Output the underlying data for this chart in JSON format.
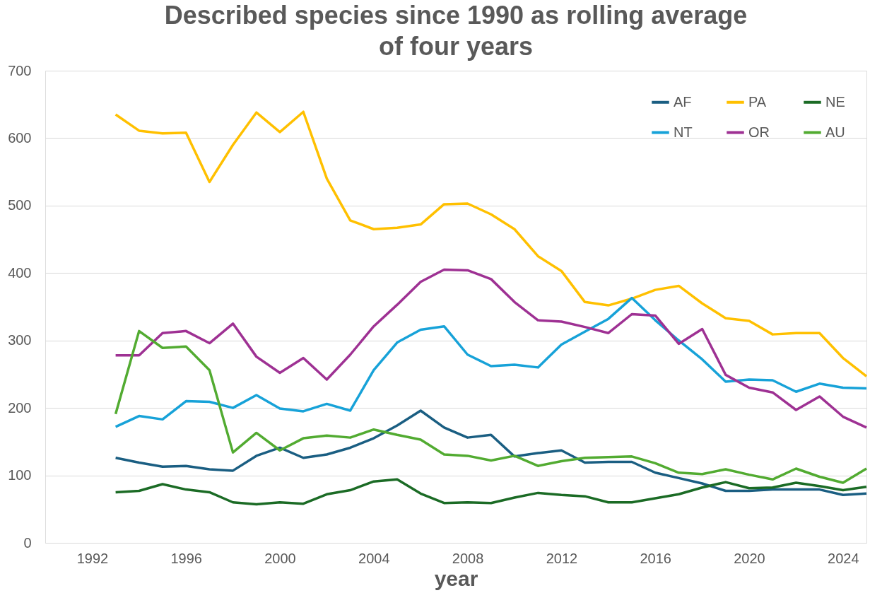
{
  "chart_data": {
    "type": "line",
    "title": "Described species since 1990 as rolling average of four years",
    "xlabel": "year",
    "x": [
      1993,
      1994,
      1995,
      1996,
      1997,
      1998,
      1999,
      2000,
      2001,
      2002,
      2003,
      2004,
      2005,
      2006,
      2007,
      2008,
      2009,
      2010,
      2011,
      2012,
      2013,
      2014,
      2015,
      2016,
      2017,
      2018,
      2019,
      2020,
      2021,
      2022,
      2023,
      2024,
      2025
    ],
    "series": [
      {
        "name": "AF",
        "color": "#1a5e82",
        "values": [
          126,
          119,
          113,
          114,
          109,
          107,
          129,
          141,
          126,
          131,
          141,
          155,
          174,
          196,
          171,
          156,
          160,
          128,
          133,
          137,
          119,
          120,
          120,
          104,
          96,
          88,
          77,
          77,
          79,
          79,
          79,
          71,
          73
        ]
      },
      {
        "name": "PA",
        "color": "#ffc000",
        "values": [
          635,
          611,
          607,
          608,
          535,
          590,
          638,
          609,
          639,
          540,
          478,
          465,
          467,
          472,
          502,
          503,
          487,
          465,
          425,
          403,
          357,
          352,
          362,
          375,
          381,
          355,
          333,
          329,
          309,
          311,
          311,
          274,
          247
        ]
      },
      {
        "name": "NE",
        "color": "#1b6b25",
        "values": [
          75,
          77,
          87,
          79,
          75,
          60,
          57,
          60,
          58,
          72,
          78,
          91,
          94,
          73,
          59,
          60,
          59,
          67,
          74,
          71,
          69,
          60,
          60,
          66,
          72,
          82,
          90,
          81,
          82,
          89,
          84,
          78,
          83
        ]
      },
      {
        "name": "NT",
        "color": "#17a2d8",
        "values": [
          172,
          188,
          183,
          210,
          209,
          200,
          219,
          199,
          195,
          206,
          196,
          256,
          297,
          316,
          321,
          279,
          262,
          264,
          260,
          294,
          313,
          332,
          363,
          330,
          300,
          272,
          239,
          242,
          241,
          224,
          236,
          230,
          229
        ]
      },
      {
        "name": "OR",
        "color": "#9e3193",
        "values": [
          278,
          278,
          311,
          314,
          296,
          325,
          276,
          252,
          274,
          242,
          279,
          321,
          353,
          387,
          405,
          404,
          391,
          357,
          330,
          328,
          320,
          311,
          339,
          337,
          295,
          317,
          249,
          230,
          223,
          197,
          217,
          187,
          171
        ]
      },
      {
        "name": "AU",
        "color": "#52ab31",
        "values": [
          191,
          314,
          289,
          291,
          256,
          134,
          163,
          137,
          155,
          159,
          156,
          168,
          160,
          153,
          131,
          129,
          122,
          129,
          114,
          121,
          126,
          127,
          128,
          118,
          104,
          102,
          109,
          101,
          94,
          110,
          98,
          89,
          110
        ]
      }
    ],
    "xlim": [
      1990,
      2025
    ],
    "xticks": [
      1992,
      1996,
      2000,
      2004,
      2008,
      2012,
      2016,
      2020,
      2024
    ],
    "ylim": [
      0,
      700
    ],
    "yticks": [
      0,
      100,
      200,
      300,
      400,
      500,
      600,
      700
    ],
    "grid": "y",
    "legend": "top right",
    "marker": "none",
    "line_style": "solid"
  }
}
